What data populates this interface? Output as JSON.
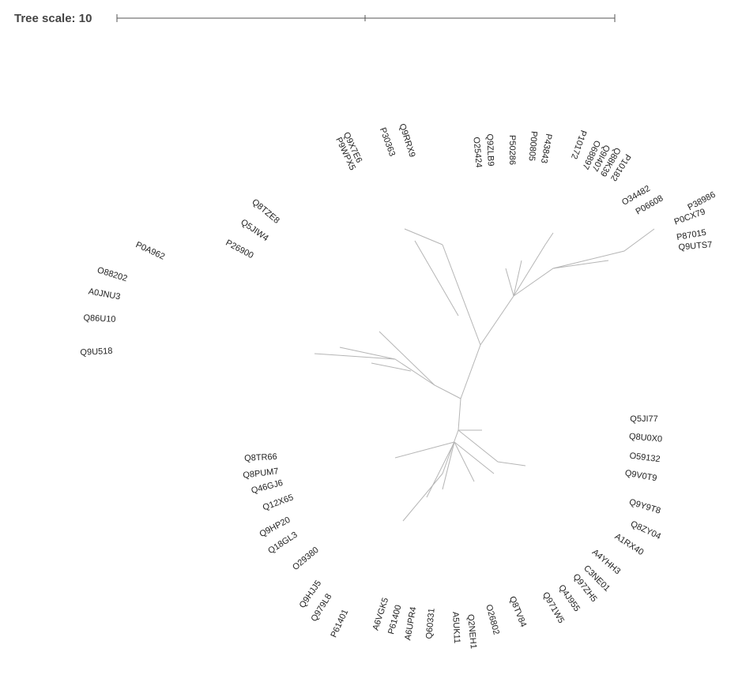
{
  "header": {
    "scale_label": "Tree scale: 10"
  },
  "tree": {
    "leaves": [
      "P9WPX5",
      "Q9X7E6",
      "P30363",
      "Q9RRX9",
      "O25424",
      "Q9ZLB9",
      "P50286",
      "P00805",
      "P43843",
      "P10172",
      "O68897",
      "Q9I407",
      "Q88K39",
      "P10182",
      "O34482",
      "P06608",
      "P38986",
      "P0CX79",
      "P87015",
      "Q9UTS7",
      "Q8TZE8",
      "Q5JIW4",
      "P26900",
      "P0A962",
      "O88202",
      "A0JNU3",
      "Q86U10",
      "Q9U518",
      "Q5JI77",
      "Q8U0X0",
      "O59132",
      "Q9V0T9",
      "Q9Y9T8",
      "Q8ZY04",
      "A1RX40",
      "A4YHH3",
      "C3NE01",
      "Q97ZH5",
      "Q4J955",
      "Q971W5",
      "Q8TV84",
      "O26802",
      "Q2NEH1",
      "A5UK11",
      "Q60331",
      "A6UPR4",
      "P61400",
      "A6VGK5",
      "P61401",
      "Q979L8",
      "Q9HJJ5",
      "O29380",
      "Q18GL3",
      "Q9HP20",
      "Q12X65",
      "Q46GJ6",
      "Q8PUM7",
      "Q8TR66"
    ]
  }
}
